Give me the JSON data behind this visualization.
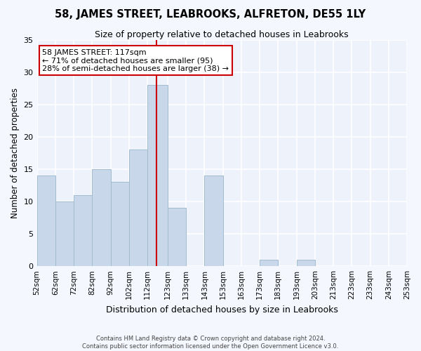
{
  "title": "58, JAMES STREET, LEABROOKS, ALFRETON, DE55 1LY",
  "subtitle": "Size of property relative to detached houses in Leabrooks",
  "xlabel": "Distribution of detached houses by size in Leabrooks",
  "ylabel": "Number of detached properties",
  "bar_color": "#c8d8ea",
  "bar_edge_color": "#a0bcce",
  "background_color": "#eef2fb",
  "fig_background_color": "#f5f7fe",
  "grid_color": "#ffffff",
  "vline_x": 117,
  "vline_color": "#cc0000",
  "bin_edges": [
    52,
    62,
    72,
    82,
    92,
    102,
    112,
    123,
    133,
    143,
    153,
    163,
    173,
    183,
    193,
    203,
    213,
    223,
    233,
    243,
    253
  ],
  "bin_labels": [
    "52sqm",
    "62sqm",
    "72sqm",
    "82sqm",
    "92sqm",
    "102sqm",
    "112sqm",
    "123sqm",
    "133sqm",
    "143sqm",
    "153sqm",
    "163sqm",
    "173sqm",
    "183sqm",
    "193sqm",
    "203sqm",
    "213sqm",
    "223sqm",
    "233sqm",
    "243sqm",
    "253sqm"
  ],
  "bar_heights": [
    14,
    10,
    11,
    15,
    13,
    18,
    28,
    9,
    0,
    14,
    0,
    0,
    1,
    0,
    1,
    0,
    0,
    0,
    0,
    0
  ],
  "ylim": [
    0,
    35
  ],
  "yticks": [
    0,
    5,
    10,
    15,
    20,
    25,
    30,
    35
  ],
  "annotation_title": "58 JAMES STREET: 117sqm",
  "annotation_line1": "← 71% of detached houses are smaller (95)",
  "annotation_line2": "28% of semi-detached houses are larger (38) →",
  "annotation_box_color": "#ffffff",
  "annotation_box_edge": "#cc0000",
  "footer1": "Contains HM Land Registry data © Crown copyright and database right 2024.",
  "footer2": "Contains public sector information licensed under the Open Government Licence v3.0."
}
